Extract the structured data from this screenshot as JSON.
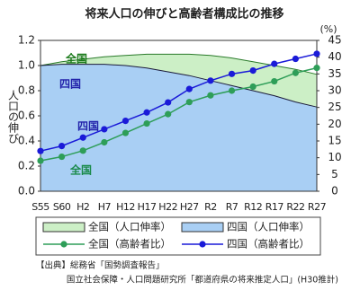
{
  "chart_data": {
    "type": "combo",
    "title": "将来人口の伸びと高齢者構成比の推移",
    "y_label": "人口の伸び",
    "y2_label": "(%)",
    "categories": [
      "S55",
      "S60",
      "H2",
      "H7",
      "H12",
      "H17",
      "H22",
      "H27",
      "R2",
      "R7",
      "R12",
      "R17",
      "R22",
      "R27"
    ],
    "ylim": [
      0,
      1.2
    ],
    "yticks": [
      {
        "value": 0,
        "label": "0.0"
      },
      0.2,
      0.4,
      0.6,
      0.8,
      {
        "value": 1,
        "label": "1.0"
      },
      1.2
    ],
    "y2lim": [
      0,
      45
    ],
    "y2ticks": [
      0,
      5,
      10,
      15,
      20,
      25,
      30,
      35,
      40,
      45
    ],
    "series": [
      {
        "name": "全国（人口伸率）",
        "type": "area",
        "color": "#ccefc6",
        "edge": "#2a7a2a",
        "values": [
          1.0,
          1.03,
          1.05,
          1.07,
          1.08,
          1.09,
          1.09,
          1.09,
          1.08,
          1.06,
          1.03,
          1.0,
          0.97,
          0.93
        ]
      },
      {
        "name": "四国（人口伸率）",
        "type": "area",
        "color": "#a9cff4",
        "edge": "#1a1a3a",
        "values": [
          1.0,
          1.01,
          1.01,
          1.01,
          1.0,
          0.98,
          0.95,
          0.92,
          0.88,
          0.84,
          0.8,
          0.76,
          0.71,
          0.67
        ]
      },
      {
        "name": "全国（高齢者比）",
        "type": "line",
        "axis": "y2",
        "color": "#2e9e58",
        "values": [
          9.1,
          10.3,
          12.1,
          14.6,
          17.4,
          20.2,
          23.0,
          26.6,
          28.6,
          30.0,
          31.2,
          32.8,
          35.3,
          36.8
        ]
      },
      {
        "name": "四国（高齢者比）",
        "type": "line",
        "axis": "y2",
        "color": "#1a1ad8",
        "values": [
          12.0,
          13.5,
          16.0,
          18.5,
          21.0,
          23.5,
          26.5,
          30.5,
          33.0,
          35.0,
          36.0,
          38.0,
          39.5,
          41.0
        ]
      }
    ],
    "annotations": [
      "全国",
      "四国",
      "四国",
      "全国"
    ],
    "source": [
      "【出典】総務省「国勢調査報告」",
      "国立社会保障・人口問題研究所「都道府県の将来推定人口」(H30推計)"
    ]
  }
}
